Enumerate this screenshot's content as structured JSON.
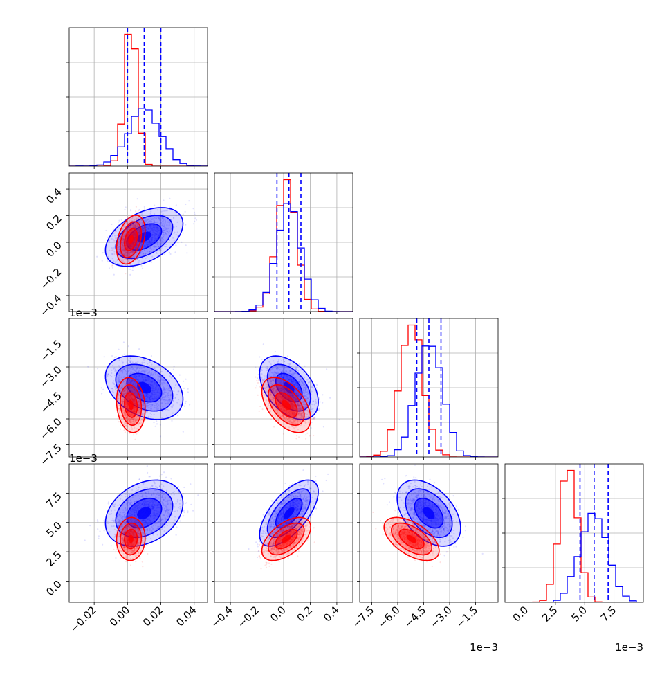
{
  "chart_data": {
    "type": "corner",
    "grid": true,
    "parameters": [
      {
        "key": "p1",
        "range": [
          -0.035,
          0.048
        ],
        "ticks": [
          -0.02,
          0.0,
          0.02,
          0.04
        ],
        "tick_labels": [
          "−0.02",
          "0.00",
          "0.02",
          "0.04"
        ],
        "multiplier": ""
      },
      {
        "key": "p2",
        "range": [
          -0.52,
          0.52
        ],
        "ticks": [
          -0.4,
          -0.2,
          0.0,
          0.2,
          0.4
        ],
        "tick_labels": [
          "−0.4",
          "−0.2",
          "0.0",
          "0.2",
          "0.4"
        ],
        "multiplier": ""
      },
      {
        "key": "p3",
        "range": [
          -8.2,
          -0.2
        ],
        "ticks": [
          -7.5,
          -6.0,
          -4.5,
          -3.0,
          -1.5
        ],
        "tick_labels": [
          "−7.5",
          "−6.0",
          "−4.5",
          "−3.0",
          "−1.5"
        ],
        "multiplier": "1e−3"
      },
      {
        "key": "p4",
        "range": [
          -1.8,
          10.0
        ],
        "ticks": [
          0.0,
          2.5,
          5.0,
          7.5
        ],
        "tick_labels": [
          "0.0",
          "2.5",
          "5.0",
          "7.5"
        ],
        "multiplier": "1e−3"
      }
    ],
    "series": [
      {
        "color": "#0000ff",
        "mean": [
          0.01,
          0.04,
          -4.2,
          5.8
        ],
        "std": [
          0.0095,
          0.09,
          0.75,
          1.15
        ],
        "corr": [
          [
            1,
            0.45,
            -0.35,
            0.3
          ],
          [
            0.45,
            1,
            -0.45,
            0.65
          ],
          [
            -0.35,
            -0.45,
            1,
            -0.45
          ],
          [
            0.3,
            0.65,
            -0.45,
            1
          ]
        ],
        "quantiles": [
          [
            0.0,
            0.01,
            0.02
          ],
          [
            -0.05,
            0.04,
            0.13
          ],
          [
            -4.9,
            -4.2,
            -3.5
          ],
          [
            4.6,
            5.8,
            7.0
          ]
        ]
      },
      {
        "color": "#ff0000",
        "mean": [
          0.002,
          0.02,
          -5.2,
          3.6
        ],
        "std": [
          0.0035,
          0.075,
          0.65,
          0.75
        ],
        "corr": [
          [
            1,
            0.35,
            -0.15,
            0.05
          ],
          [
            0.35,
            1,
            -0.5,
            0.55
          ],
          [
            -0.15,
            -0.5,
            1,
            -0.55
          ],
          [
            0.05,
            0.55,
            -0.55,
            1
          ]
        ],
        "quantiles": []
      }
    ]
  }
}
